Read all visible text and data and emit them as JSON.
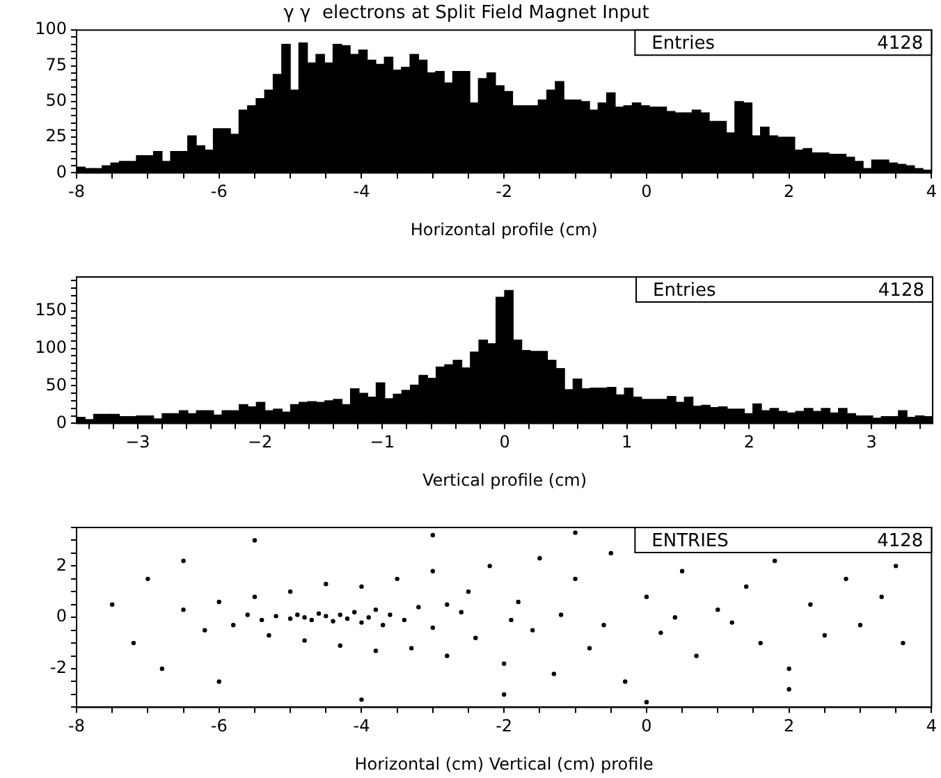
{
  "chart_data": [
    {
      "type": "histogram",
      "title": "γ γ  electrons at Split Field Magnet Input",
      "xlabel": "Horizontal profile (cm)",
      "color": "#000000",
      "annotations": [
        "Entries",
        "4128"
      ],
      "bins": [
        -8,
        -7.88,
        -7.76,
        -7.64,
        -7.52,
        -7.4,
        -7.28,
        -7.16,
        -7.04,
        -6.92,
        -6.8,
        -6.68,
        -6.56,
        -6.44,
        -6.32,
        -6.2,
        -6.08,
        -5.96,
        -5.84,
        -5.72,
        -5.6,
        -5.48,
        -5.36,
        -5.24,
        -5.12,
        -5,
        -4.88,
        -4.76,
        -4.64,
        -4.52,
        -4.4,
        -4.28,
        -4.16,
        -4.04,
        -3.92,
        -3.8,
        -3.68,
        -3.56,
        -3.44,
        -3.32,
        -3.2,
        -3.08,
        -2.96,
        -2.84,
        -2.72,
        -2.6,
        -2.48,
        -2.36,
        -2.24,
        -2.12,
        -2,
        -1.88,
        -1.76,
        -1.64,
        -1.52,
        -1.4,
        -1.28,
        -1.16,
        -1.04,
        -0.92,
        -0.8,
        -0.68,
        -0.56,
        -0.44,
        -0.32,
        -0.2,
        -0.08,
        0.04,
        0.16,
        0.28,
        0.4,
        0.52,
        0.64,
        0.76,
        0.88,
        1,
        1.12,
        1.24,
        1.36,
        1.48,
        1.6,
        1.72,
        1.84,
        1.96,
        2.08,
        2.2,
        2.32,
        2.44,
        2.56,
        2.68,
        2.8,
        2.92,
        3.04,
        3.16,
        3.28,
        3.4,
        3.52,
        3.64,
        3.76,
        3.88,
        4
      ],
      "values": [
        4,
        3,
        3,
        5,
        7,
        8,
        8,
        12,
        12,
        15,
        8,
        15,
        15,
        26,
        19,
        16,
        31,
        31,
        27,
        44,
        47,
        52,
        58,
        69,
        90,
        58,
        91,
        77,
        83,
        77,
        90,
        89,
        83,
        86,
        79,
        76,
        81,
        72,
        74,
        83,
        79,
        70,
        71,
        63,
        71,
        71,
        49,
        66,
        70,
        61,
        57,
        47,
        47,
        47,
        51,
        58,
        64,
        51,
        51,
        50,
        44,
        49,
        56,
        46,
        47,
        49,
        47,
        46,
        46,
        43,
        42,
        42,
        44,
        42,
        36,
        36,
        28,
        50,
        49,
        26,
        32,
        26,
        25,
        25,
        16,
        17,
        14,
        14,
        13,
        13,
        11,
        8,
        3,
        9,
        9,
        7,
        6,
        5,
        3,
        2
      ],
      "xlim": [
        -8,
        4
      ],
      "xticks": [
        -8,
        {
          "value": -7.5,
          "label": null
        },
        {
          "value": -7,
          "label": null
        },
        {
          "value": -6.5,
          "label": null
        },
        -6,
        {
          "value": -5.5,
          "label": null
        },
        {
          "value": -5,
          "label": null
        },
        {
          "value": -4.5,
          "label": null
        },
        -4,
        {
          "value": -3.5,
          "label": null
        },
        {
          "value": -3,
          "label": null
        },
        {
          "value": -2.5,
          "label": null
        },
        -2,
        {
          "value": -1.5,
          "label": null
        },
        {
          "value": -1,
          "label": null
        },
        {
          "value": -0.5,
          "label": null
        },
        0,
        {
          "value": 0.5,
          "label": null
        },
        {
          "value": 1,
          "label": null
        },
        {
          "value": 1.5,
          "label": null
        },
        2,
        {
          "value": 2.5,
          "label": null
        },
        {
          "value": 3,
          "label": null
        },
        {
          "value": 3.5,
          "label": null
        },
        4
      ],
      "ylim": [
        0,
        100
      ],
      "yticks": [
        0,
        {
          "value": 5,
          "label": null
        },
        {
          "value": 10,
          "label": null
        },
        {
          "value": 15,
          "label": null
        },
        {
          "value": 20,
          "label": null
        },
        25,
        {
          "value": 30,
          "label": null
        },
        {
          "value": 35,
          "label": null
        },
        {
          "value": 40,
          "label": null
        },
        {
          "value": 45,
          "label": null
        },
        50,
        {
          "value": 55,
          "label": null
        },
        {
          "value": 60,
          "label": null
        },
        {
          "value": 65,
          "label": null
        },
        {
          "value": 70,
          "label": null
        },
        75,
        {
          "value": 80,
          "label": null
        },
        {
          "value": 85,
          "label": null
        },
        {
          "value": 90,
          "label": null
        },
        {
          "value": 95,
          "label": null
        },
        100
      ]
    },
    {
      "type": "histogram",
      "xlabel": "Vertical profile (cm)",
      "color": "#000000",
      "annotations": [
        "Entries",
        "4128"
      ],
      "bins": [
        -3.5,
        -3.43,
        -3.36,
        -3.29,
        -3.22,
        -3.15,
        -3.08,
        -3.01,
        -2.94,
        -2.87,
        -2.8,
        -2.73,
        -2.66,
        -2.59,
        -2.52,
        -2.45,
        -2.38,
        -2.31,
        -2.24,
        -2.17,
        -2.1,
        -2.03,
        -1.96,
        -1.89,
        -1.82,
        -1.75,
        -1.68,
        -1.61,
        -1.54,
        -1.47,
        -1.4,
        -1.33,
        -1.26,
        -1.19,
        -1.12,
        -1.05,
        -0.98,
        -0.91,
        -0.84,
        -0.77,
        -0.7,
        -0.63,
        -0.56,
        -0.49,
        -0.42,
        -0.35,
        -0.28,
        -0.21,
        -0.14,
        -0.07,
        0,
        0.07,
        0.14,
        0.21,
        0.28,
        0.35,
        0.42,
        0.49,
        0.56,
        0.63,
        0.7,
        0.77,
        0.84,
        0.91,
        0.98,
        1.05,
        1.12,
        1.19,
        1.26,
        1.33,
        1.4,
        1.47,
        1.54,
        1.61,
        1.68,
        1.75,
        1.82,
        1.89,
        1.96,
        2.03,
        2.1,
        2.17,
        2.24,
        2.31,
        2.38,
        2.45,
        2.52,
        2.59,
        2.66,
        2.73,
        2.8,
        2.87,
        2.94,
        3.01,
        3.08,
        3.15,
        3.22,
        3.29,
        3.36,
        3.43,
        3.5
      ],
      "values": [
        8,
        5,
        12,
        12,
        12,
        9,
        9,
        10,
        10,
        6,
        13,
        13,
        17,
        13,
        17,
        17,
        11,
        17,
        17,
        25,
        22,
        28,
        17,
        19,
        15,
        25,
        28,
        29,
        28,
        30,
        32,
        25,
        46,
        40,
        35,
        54,
        33,
        39,
        44,
        51,
        64,
        60,
        75,
        78,
        84,
        74,
        95,
        111,
        106,
        168,
        177,
        111,
        97,
        96,
        96,
        84,
        73,
        45,
        59,
        46,
        47,
        47,
        48,
        38,
        47,
        35,
        32,
        32,
        32,
        36,
        28,
        35,
        23,
        24,
        21,
        22,
        19,
        19,
        13,
        26,
        17,
        20,
        16,
        14,
        16,
        20,
        16,
        20,
        14,
        20,
        13,
        10,
        10,
        7,
        9,
        9,
        17,
        8,
        10,
        9
      ],
      "xlim": [
        -3.5,
        3.5
      ],
      "xticks": [
        {
          "value": -3.4,
          "label": null
        },
        {
          "value": -3.2,
          "label": null
        },
        {
          "value": -3,
          "label": "−3"
        },
        {
          "value": -2.8,
          "label": null
        },
        {
          "value": -2.6,
          "label": null
        },
        {
          "value": -2.4,
          "label": null
        },
        {
          "value": -2.2,
          "label": null
        },
        {
          "value": -2,
          "label": "−2"
        },
        {
          "value": -1.8,
          "label": null
        },
        {
          "value": -1.6,
          "label": null
        },
        {
          "value": -1.4,
          "label": null
        },
        {
          "value": -1.2,
          "label": null
        },
        {
          "value": -1,
          "label": "−1"
        },
        {
          "value": -0.8,
          "label": null
        },
        {
          "value": -0.6,
          "label": null
        },
        {
          "value": -0.4,
          "label": null
        },
        {
          "value": -0.2,
          "label": null
        },
        0,
        {
          "value": 0.2,
          "label": null
        },
        {
          "value": 0.4,
          "label": null
        },
        {
          "value": 0.6,
          "label": null
        },
        {
          "value": 0.8,
          "label": null
        },
        1,
        {
          "value": 1.2,
          "label": null
        },
        {
          "value": 1.4,
          "label": null
        },
        {
          "value": 1.6,
          "label": null
        },
        {
          "value": 1.8,
          "label": null
        },
        2,
        {
          "value": 2.2,
          "label": null
        },
        {
          "value": 2.4,
          "label": null
        },
        {
          "value": 2.6,
          "label": null
        },
        {
          "value": 2.8,
          "label": null
        },
        3,
        {
          "value": 3.2,
          "label": null
        },
        {
          "value": 3.4,
          "label": null
        }
      ],
      "ylim": [
        0,
        195
      ],
      "yticks": [
        0,
        {
          "value": 10,
          "label": null
        },
        {
          "value": 20,
          "label": null
        },
        {
          "value": 30,
          "label": null
        },
        {
          "value": 40,
          "label": null
        },
        50,
        {
          "value": 60,
          "label": null
        },
        {
          "value": 70,
          "label": null
        },
        {
          "value": 80,
          "label": null
        },
        {
          "value": 90,
          "label": null
        },
        100,
        {
          "value": 110,
          "label": null
        },
        {
          "value": 120,
          "label": null
        },
        {
          "value": 130,
          "label": null
        },
        {
          "value": 140,
          "label": null
        },
        150,
        {
          "value": 160,
          "label": null
        },
        {
          "value": 170,
          "label": null
        },
        {
          "value": 180,
          "label": null
        },
        {
          "value": 190,
          "label": null
        }
      ]
    },
    {
      "type": "scatter",
      "xlabel": "Horizontal (cm) Vertical (cm) profile",
      "color": "#000000",
      "marker": "circle",
      "annotations": [
        "ENTRIES",
        "4128"
      ],
      "x": [
        -5.6,
        -5.4,
        -5.2,
        -5.0,
        -4.9,
        -4.8,
        -4.7,
        -4.6,
        -4.5,
        -4.4,
        -4.3,
        -4.2,
        -4.1,
        -4.0,
        -3.9,
        -3.8,
        -3.7,
        -3.6,
        -3.4,
        -3.2,
        -3.0,
        -2.8,
        -6.5,
        -6.2,
        -6.0,
        -5.8,
        -5.5,
        -5.3,
        -5.0,
        -4.8,
        -4.5,
        -4.3,
        -4.0,
        -3.8,
        -3.5,
        -3.3,
        -3.0,
        -2.8,
        -2.5,
        -2.4,
        -2.2,
        -2.0,
        -1.8,
        -1.6,
        -1.5,
        -1.3,
        -1.0,
        -0.8,
        -0.5,
        -0.3,
        0.0,
        0.2,
        0.5,
        0.7,
        1.0,
        1.2,
        1.4,
        1.6,
        1.8,
        2.0,
        2.3,
        2.5,
        2.8,
        3.0,
        3.3,
        3.6,
        -7.5,
        -7.2,
        -7.0,
        -6.8,
        -6.5,
        -6.0,
        -5.5,
        -4.0,
        -3.0,
        -2.0,
        -1.0,
        0.0,
        2.0,
        3.5,
        -1.2,
        -0.6,
        0.4,
        -2.6,
        -1.9
      ],
      "values": [
        0.1,
        -0.1,
        0.05,
        -0.05,
        0.1,
        0.0,
        -0.1,
        0.15,
        0.05,
        -0.15,
        0.1,
        -0.05,
        0.2,
        -0.2,
        0.0,
        0.3,
        -0.3,
        0.1,
        -0.1,
        0.4,
        -0.4,
        0.5,
        0.3,
        -0.5,
        0.6,
        -0.3,
        0.8,
        -0.7,
        1.0,
        -0.9,
        1.3,
        -1.1,
        1.2,
        -1.3,
        1.5,
        -1.2,
        1.8,
        -1.5,
        1.0,
        -0.8,
        2.0,
        -1.8,
        0.6,
        -0.5,
        2.3,
        -2.2,
        1.5,
        -1.2,
        2.5,
        -2.5,
        0.8,
        -0.6,
        1.8,
        -1.5,
        0.3,
        -0.2,
        1.2,
        -1.0,
        2.2,
        -2.0,
        0.5,
        -0.7,
        1.5,
        -0.3,
        0.8,
        -1.0,
        0.5,
        -1.0,
        1.5,
        -2.0,
        2.2,
        -2.5,
        3.0,
        -3.2,
        3.2,
        -3.0,
        3.3,
        -3.3,
        -2.8,
        2.0,
        0.1,
        -0.3,
        0.0,
        0.2,
        -0.1
      ],
      "xlim": [
        -8,
        4
      ],
      "xticks": [
        -8,
        {
          "value": -7.5,
          "label": null
        },
        {
          "value": -7,
          "label": null
        },
        {
          "value": -6.5,
          "label": null
        },
        -6,
        {
          "value": -5.5,
          "label": null
        },
        {
          "value": -5,
          "label": null
        },
        {
          "value": -4.5,
          "label": null
        },
        -4,
        {
          "value": -3.5,
          "label": null
        },
        {
          "value": -3,
          "label": null
        },
        {
          "value": -2.5,
          "label": null
        },
        -2,
        {
          "value": -1.5,
          "label": null
        },
        {
          "value": -1,
          "label": null
        },
        {
          "value": -0.5,
          "label": null
        },
        0,
        {
          "value": 0.5,
          "label": null
        },
        {
          "value": 1,
          "label": null
        },
        {
          "value": 1.5,
          "label": null
        },
        2,
        {
          "value": 2.5,
          "label": null
        },
        {
          "value": 3,
          "label": null
        },
        {
          "value": 3.5,
          "label": null
        },
        4
      ],
      "ylim": [
        -3.5,
        3.5
      ],
      "yticks": [
        {
          "value": -3.5,
          "label": null
        },
        {
          "value": -3,
          "label": null
        },
        {
          "value": -2.5,
          "label": null
        },
        -2,
        {
          "value": -1.5,
          "label": null
        },
        {
          "value": -1,
          "label": null
        },
        {
          "value": -0.5,
          "label": null
        },
        0,
        {
          "value": 0.5,
          "label": null
        },
        {
          "value": 1,
          "label": null
        },
        {
          "value": 1.5,
          "label": null
        },
        2,
        {
          "value": 2.5,
          "label": null
        },
        {
          "value": 3,
          "label": null
        },
        {
          "value": 3.5,
          "label": null
        }
      ]
    }
  ]
}
